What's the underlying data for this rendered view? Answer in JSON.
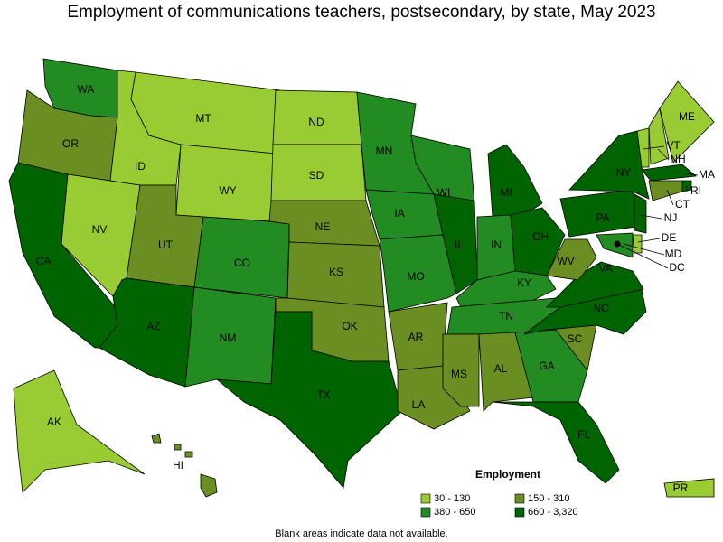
{
  "title": "Employment of communications teachers, postsecondary, by state, May 2023",
  "states": [
    {
      "id": "WA",
      "class": 2
    },
    {
      "id": "OR",
      "class": 1
    },
    {
      "id": "CA",
      "class": 3
    },
    {
      "id": "NV",
      "class": 0
    },
    {
      "id": "ID",
      "class": 0
    },
    {
      "id": "MT",
      "class": 0
    },
    {
      "id": "WY",
      "class": 0
    },
    {
      "id": "UT",
      "class": 1
    },
    {
      "id": "AZ",
      "class": 3
    },
    {
      "id": "CO",
      "class": 2
    },
    {
      "id": "NM",
      "class": 2
    },
    {
      "id": "ND",
      "class": 0
    },
    {
      "id": "SD",
      "class": 0
    },
    {
      "id": "NE",
      "class": 1
    },
    {
      "id": "KS",
      "class": 1
    },
    {
      "id": "OK",
      "class": 1
    },
    {
      "id": "TX",
      "class": 3
    },
    {
      "id": "MN",
      "class": 2
    },
    {
      "id": "IA",
      "class": 2
    },
    {
      "id": "MO",
      "class": 2
    },
    {
      "id": "AR",
      "class": 1
    },
    {
      "id": "LA",
      "class": 1
    },
    {
      "id": "WI",
      "class": 2
    },
    {
      "id": "IL",
      "class": 3
    },
    {
      "id": "MI",
      "class": 3
    },
    {
      "id": "IN",
      "class": 2
    },
    {
      "id": "OH",
      "class": 3
    },
    {
      "id": "KY",
      "class": 2
    },
    {
      "id": "TN",
      "class": 2
    },
    {
      "id": "MS",
      "class": 1
    },
    {
      "id": "AL",
      "class": 1
    },
    {
      "id": "GA",
      "class": 2
    },
    {
      "id": "FL",
      "class": 3
    },
    {
      "id": "SC",
      "class": 1
    },
    {
      "id": "NC",
      "class": 3
    },
    {
      "id": "VA",
      "class": 3
    },
    {
      "id": "WV",
      "class": 1
    },
    {
      "id": "PA",
      "class": 3
    },
    {
      "id": "NY",
      "class": 3
    },
    {
      "id": "VT",
      "class": 0
    },
    {
      "id": "NH",
      "class": 0
    },
    {
      "id": "ME",
      "class": 0
    },
    {
      "id": "MA",
      "class": 3
    },
    {
      "id": "RI",
      "class": 3
    },
    {
      "id": "CT",
      "class": 1
    },
    {
      "id": "NJ",
      "class": 3
    },
    {
      "id": "DE",
      "class": 0
    },
    {
      "id": "MD",
      "class": 2
    },
    {
      "id": "DC",
      "class": 3
    },
    {
      "id": "AK",
      "class": 0
    },
    {
      "id": "HI",
      "class": 1
    },
    {
      "id": "PR",
      "class": 0
    }
  ],
  "legend": {
    "title": "Employment",
    "items": [
      {
        "label": "30 - 130",
        "color": "#99cc33"
      },
      {
        "label": "150 - 310",
        "color": "#6b8e23"
      },
      {
        "label": "380 - 650",
        "color": "#228b22"
      },
      {
        "label": "660 - 3,320",
        "color": "#006400"
      }
    ]
  },
  "note": "Blank areas indicate data not available."
}
